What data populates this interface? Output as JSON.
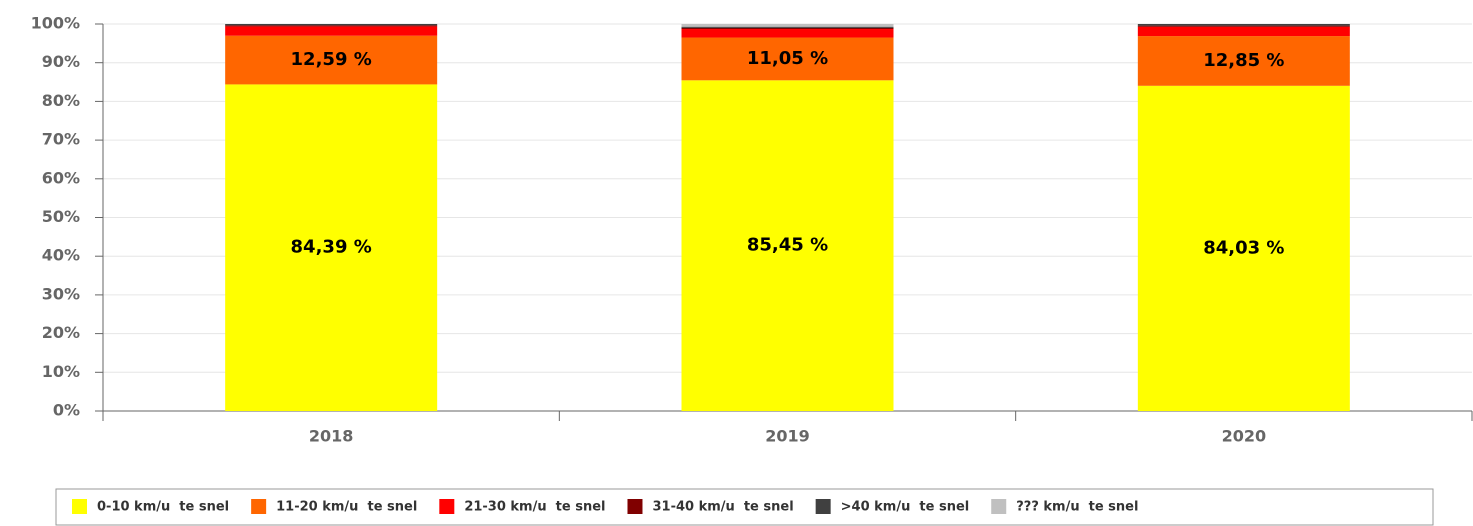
{
  "chart_data": {
    "type": "stacked_bar",
    "categories": [
      "2018",
      "2019",
      "2020"
    ],
    "series": [
      {
        "name": "0-10 km/u  te snel",
        "color": "#ffff00",
        "values": [
          84.39,
          85.45,
          84.03
        ],
        "value_labels": [
          "84,39 %",
          "85,45 %",
          "84,03 %"
        ]
      },
      {
        "name": "11-20 km/u  te snel",
        "color": "#ff6600",
        "values": [
          12.59,
          11.05,
          12.85
        ],
        "value_labels": [
          "12,59 %",
          "11,05 %",
          "12,85 %"
        ]
      },
      {
        "name": "21-30 km/u  te snel",
        "color": "#ff0000",
        "values": [
          2.4,
          2.2,
          2.4
        ]
      },
      {
        "name": "31-40 km/u  te snel",
        "color": "#800000",
        "values": [
          0.3,
          0.3,
          0.3
        ]
      },
      {
        "name": ">40 km/u  te snel",
        "color": "#404040",
        "values": [
          0.32,
          0.3,
          0.42
        ]
      },
      {
        "name": "??? km/u  te snel",
        "color": "#c0c0c0",
        "values": [
          0,
          0.7,
          0
        ]
      }
    ],
    "ylim": [
      0,
      100
    ],
    "yticks": [
      {
        "value": 0,
        "label": "0%"
      },
      {
        "value": 10,
        "label": "10%"
      },
      {
        "value": 20,
        "label": "20%"
      },
      {
        "value": 30,
        "label": "30%"
      },
      {
        "value": 40,
        "label": "40%"
      },
      {
        "value": 50,
        "label": "50%"
      },
      {
        "value": 60,
        "label": "60%"
      },
      {
        "value": 70,
        "label": "70%"
      },
      {
        "value": 80,
        "label": "80%"
      },
      {
        "value": 90,
        "label": "90%"
      },
      {
        "value": 100,
        "label": "100%"
      }
    ],
    "grid": true,
    "legend": "bottom"
  }
}
